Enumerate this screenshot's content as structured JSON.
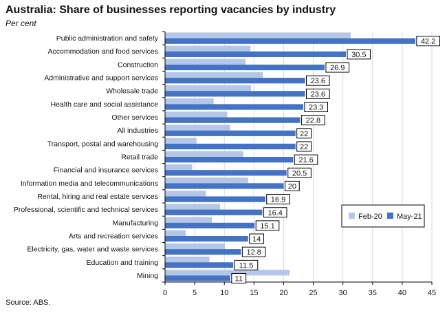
{
  "title": "Australia: Share of businesses reporting vacancies by industry",
  "subtitle": "Per cent",
  "source": "Source: ABS.",
  "chart_data": {
    "type": "bar",
    "orientation": "horizontal",
    "categories": [
      "Public administration and safety",
      "Accommodation and food services",
      "Construction",
      "Administrative and support services",
      "Wholesale trade",
      "Health care and social assistance",
      "Other services",
      "All industries",
      "Transport, postal and warehousing",
      "Retail trade",
      "Financial and insurance services",
      "Information media and telecommunications",
      "Rental, hiring and real estate services",
      "Professional, scientific and technical services",
      "Manufacturing",
      "Arts and recreation services",
      "Electricity, gas, water and waste services",
      "Education and training",
      "Mining"
    ],
    "series": [
      {
        "name": "Feb-20",
        "color": "#b4c7e7",
        "values": [
          31.3,
          14.4,
          13.6,
          16.5,
          14.5,
          8.2,
          10.5,
          11.0,
          5.3,
          13.2,
          4.6,
          14.0,
          6.9,
          9.3,
          7.9,
          3.5,
          10.1,
          7.5,
          21.0
        ]
      },
      {
        "name": "May-21",
        "color": "#4472c4",
        "values": [
          42.2,
          30.5,
          26.9,
          23.6,
          23.6,
          23.3,
          22.8,
          22,
          22,
          21.6,
          20.5,
          20,
          16.9,
          16.4,
          15.1,
          14,
          12.8,
          11.5,
          11
        ]
      }
    ],
    "data_labels": [
      "42.2",
      "30.5",
      "26.9",
      "23.6",
      "23.6",
      "23.3",
      "22.8",
      "22",
      "22",
      "21.6",
      "20.5",
      "20",
      "16.9",
      "16.4",
      "15.1",
      "14",
      "12.8",
      "11.5",
      "11"
    ],
    "xlim": [
      0,
      45
    ],
    "xticks": [
      "0",
      "5",
      "10",
      "15",
      "20",
      "25",
      "30",
      "35",
      "40",
      "45"
    ],
    "xlabel": "",
    "ylabel": "",
    "grid": "vertical",
    "legend": "lower-right"
  }
}
